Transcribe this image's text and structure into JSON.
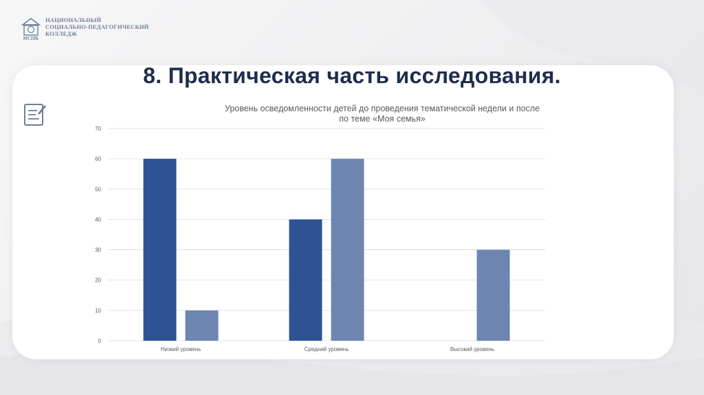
{
  "logo": {
    "abbr": "НСПК",
    "text": "НАЦИОНАЛЬНЫЙ\nСОЦИАЛЬНО-ПЕДАГОГИЧЕСКИЙ\nКОЛЛЕДЖ"
  },
  "slide": {
    "title": "8. Практическая часть исследования."
  },
  "icons": {
    "document": "document-edit-icon"
  },
  "colors": {
    "series_before": "#2e5395",
    "series_after": "#6d86b1",
    "title": "#1f2d4e",
    "grid": "#d9d9d9"
  },
  "chart_data": {
    "type": "bar",
    "title_lines": [
      "Уровень осведомленности детей до проведения тематической недели и после",
      "по теме «Моя семья»"
    ],
    "categories": [
      "Низкий уровень",
      "Средний уровень",
      "Высокий уровень"
    ],
    "series": [
      {
        "values": [
          60,
          40,
          0
        ]
      },
      {
        "values": [
          10,
          60,
          30
        ]
      }
    ],
    "ylim": [
      0,
      70
    ],
    "yticks": [
      0,
      10,
      20,
      30,
      40,
      50,
      60,
      70
    ],
    "grid": true,
    "legend": "none"
  }
}
